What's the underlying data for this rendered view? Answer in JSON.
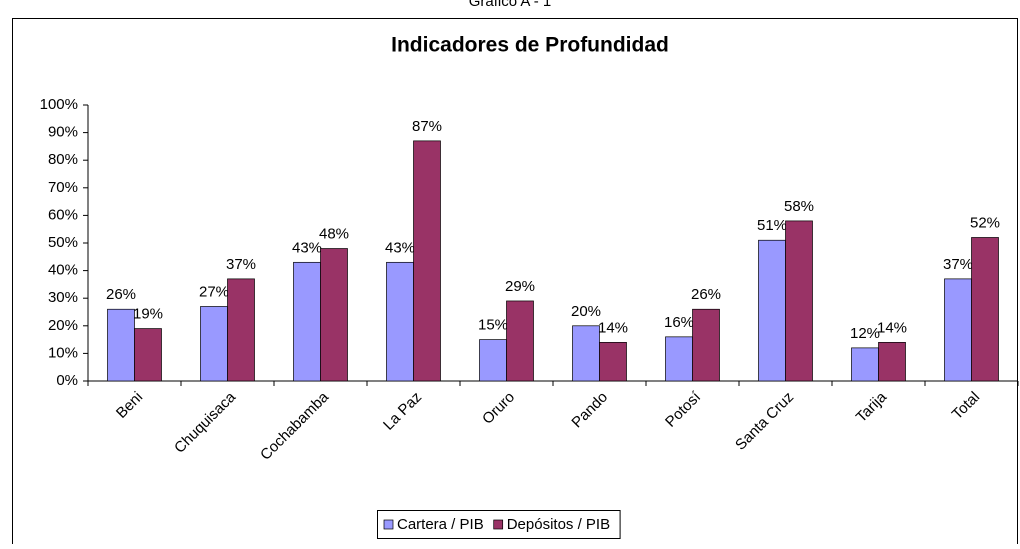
{
  "chart_data": {
    "type": "bar",
    "caption": "Gráfico A - 1",
    "title": "Indicadores de Profundidad",
    "categories": [
      "Beni",
      "Chuquisaca",
      "Cochabamba",
      "La Paz",
      "Oruro",
      "Pando",
      "Potosí",
      "Santa Cruz",
      "Tarija",
      "Total"
    ],
    "series": [
      {
        "name": "Cartera / PIB",
        "color": "#9999ff",
        "values": [
          26,
          27,
          43,
          43,
          15,
          20,
          16,
          51,
          12,
          37
        ],
        "value_labels": [
          "26%",
          "27%",
          "43%",
          "43%",
          "15%",
          "20%",
          "16%",
          "51%",
          "12%",
          "37%"
        ]
      },
      {
        "name": "Depósitos / PIB",
        "color": "#993366",
        "values": [
          19,
          37,
          48,
          87,
          29,
          14,
          26,
          58,
          14,
          52
        ],
        "value_labels": [
          "19%",
          "37%",
          "48%",
          "87%",
          "29%",
          "14%",
          "26%",
          "58%",
          "14%",
          "52%"
        ]
      }
    ],
    "ylim": [
      0,
      100
    ],
    "yticks": [
      {
        "value": 0,
        "label": "0%"
      },
      {
        "value": 10,
        "label": "10%"
      },
      {
        "value": 20,
        "label": "20%"
      },
      {
        "value": 30,
        "label": "30%"
      },
      {
        "value": 40,
        "label": "40%"
      },
      {
        "value": 50,
        "label": "50%"
      },
      {
        "value": 60,
        "label": "60%"
      },
      {
        "value": 70,
        "label": "70%"
      },
      {
        "value": 80,
        "label": "80%"
      },
      {
        "value": 90,
        "label": "90%"
      },
      {
        "value": 100,
        "label": "100%"
      }
    ],
    "grid": false,
    "legend": "bottom"
  }
}
